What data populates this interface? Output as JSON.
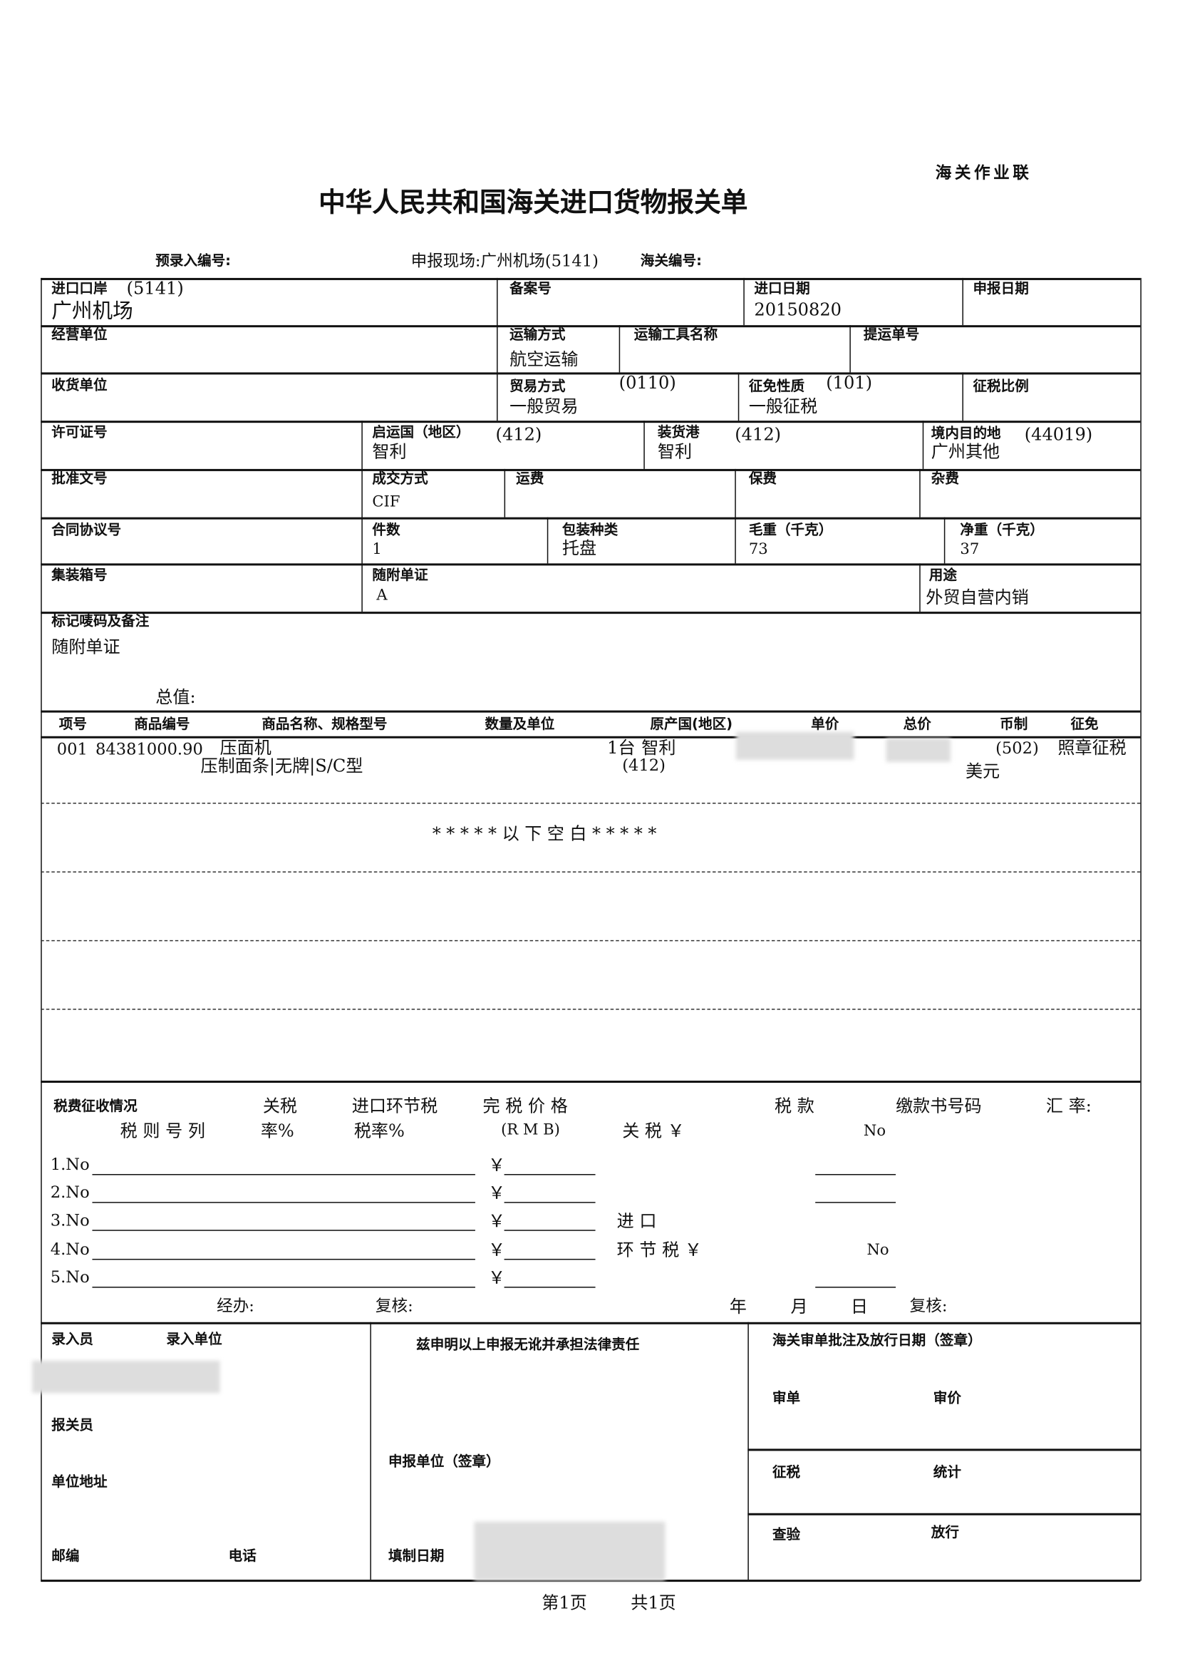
{
  "copy_label": "海关作业联",
  "title": "中华人民共和国海关进口货物报关单",
  "header": {
    "pre_entry_no": "预录入编号:",
    "declare_site": "申报现场:广州机场(5141)",
    "customs_no": "海关编号:"
  },
  "fields": {
    "import_port": {
      "label": "进口口岸",
      "code": "(5141)",
      "value": "广州机场"
    },
    "record_no": {
      "label": "备案号"
    },
    "import_date": {
      "label": "进口日期",
      "value": "20150820"
    },
    "declare_date": {
      "label": "申报日期"
    },
    "operator": {
      "label": "经营单位"
    },
    "transport_mode": {
      "label": "运输方式",
      "value": "航空运输"
    },
    "vehicle_name": {
      "label": "运输工具名称"
    },
    "bill_no": {
      "label": "提运单号"
    },
    "consignee": {
      "label": "收货单位"
    },
    "trade_mode": {
      "label": "贸易方式",
      "code": "(0110)",
      "value": "一般贸易"
    },
    "levy_nature": {
      "label": "征免性质",
      "code": "(101)",
      "value": "一般征税"
    },
    "tax_ratio": {
      "label": "征税比例"
    },
    "license_no": {
      "label": "许可证号"
    },
    "origin_country": {
      "label": "启运国（地区）",
      "code": "(412)",
      "value": "智利"
    },
    "loading_port": {
      "label": "装货港",
      "code": "(412)",
      "value": "智利"
    },
    "destination": {
      "label": "境内目的地",
      "code": "(44019)",
      "value": "广州其他"
    },
    "approval_no": {
      "label": "批准文号"
    },
    "deal_mode": {
      "label": "成交方式",
      "value": "CIF"
    },
    "freight": {
      "label": "运费"
    },
    "insurance": {
      "label": "保费"
    },
    "misc_fee": {
      "label": "杂费"
    },
    "contract_no": {
      "label": "合同协议号"
    },
    "packages": {
      "label": "件数",
      "value": "1"
    },
    "package_type": {
      "label": "包装种类",
      "value": "托盘"
    },
    "gross_weight": {
      "label": "毛重（千克）",
      "value": "73"
    },
    "net_weight": {
      "label": "净重（千克）",
      "value": "37"
    },
    "container_no": {
      "label": "集装箱号"
    },
    "attached_docs": {
      "label": "随附单证",
      "value": "A"
    },
    "usage": {
      "label": "用途",
      "value": "外贸自营内销"
    },
    "remarks": {
      "label": "标记唛码及备注",
      "value": "随附单证"
    },
    "total_value": {
      "label": "总值:"
    }
  },
  "goods": {
    "headers": [
      "项号",
      "商品编号",
      "商品名称、规格型号",
      "数量及单位",
      "原产国(地区)",
      "单价",
      "总价",
      "币制",
      "征免"
    ],
    "rows": [
      {
        "item_no": "001",
        "hs_code": "84381000.90",
        "name": "压面机",
        "spec": "压制面条|无牌|S/C型",
        "quantity": "1台",
        "origin": "智利",
        "origin_code": "(412)",
        "currency_code": "(502)",
        "currency": "美元",
        "levy": "照章征税"
      }
    ],
    "blank_note": "*****以下空白*****"
  },
  "tax": {
    "title": "税费征收情况",
    "tariff_rate": "关税",
    "import_tax_rate": "进口环节税",
    "dutiable_value": "完 税 价 格",
    "tax_amount": "税 款",
    "payment_no": "缴款书号码",
    "exchange_rate": "汇 率:",
    "hs_col": "税 则 号 列",
    "rate_pct": "率%",
    "tax_rate_pct": "税率%",
    "rmb": "(R M B)",
    "customs_duty": "关 税 ￥",
    "no1": "No",
    "lines": [
      "1.No",
      "2.No",
      "3.No",
      "4.No",
      "5.No"
    ],
    "yen": "￥",
    "import": "进 口",
    "import_tax": "环 节 税 ￥",
    "no2": "No",
    "handler": "经办:",
    "review1": "复核:",
    "year": "年",
    "month": "月",
    "day": "日",
    "review2": "复核:"
  },
  "footer_box": {
    "entry_clerk": "录入员",
    "entry_unit": "录入单位",
    "declaration": "兹申明以上申报无讹并承担法律责任",
    "customs_approval": "海关审单批注及放行日期（签章）",
    "review_doc": "审单",
    "review_price": "审价",
    "broker": "报关员",
    "declaring_unit": "申报单位（签章）",
    "levy": "征税",
    "statistics": "统计",
    "address": "单位地址",
    "inspection": "查验",
    "release": "放行",
    "postcode": "邮编",
    "phone": "电话",
    "fill_date": "填制日期"
  },
  "page": {
    "current": "第1页",
    "total": "共1页"
  }
}
